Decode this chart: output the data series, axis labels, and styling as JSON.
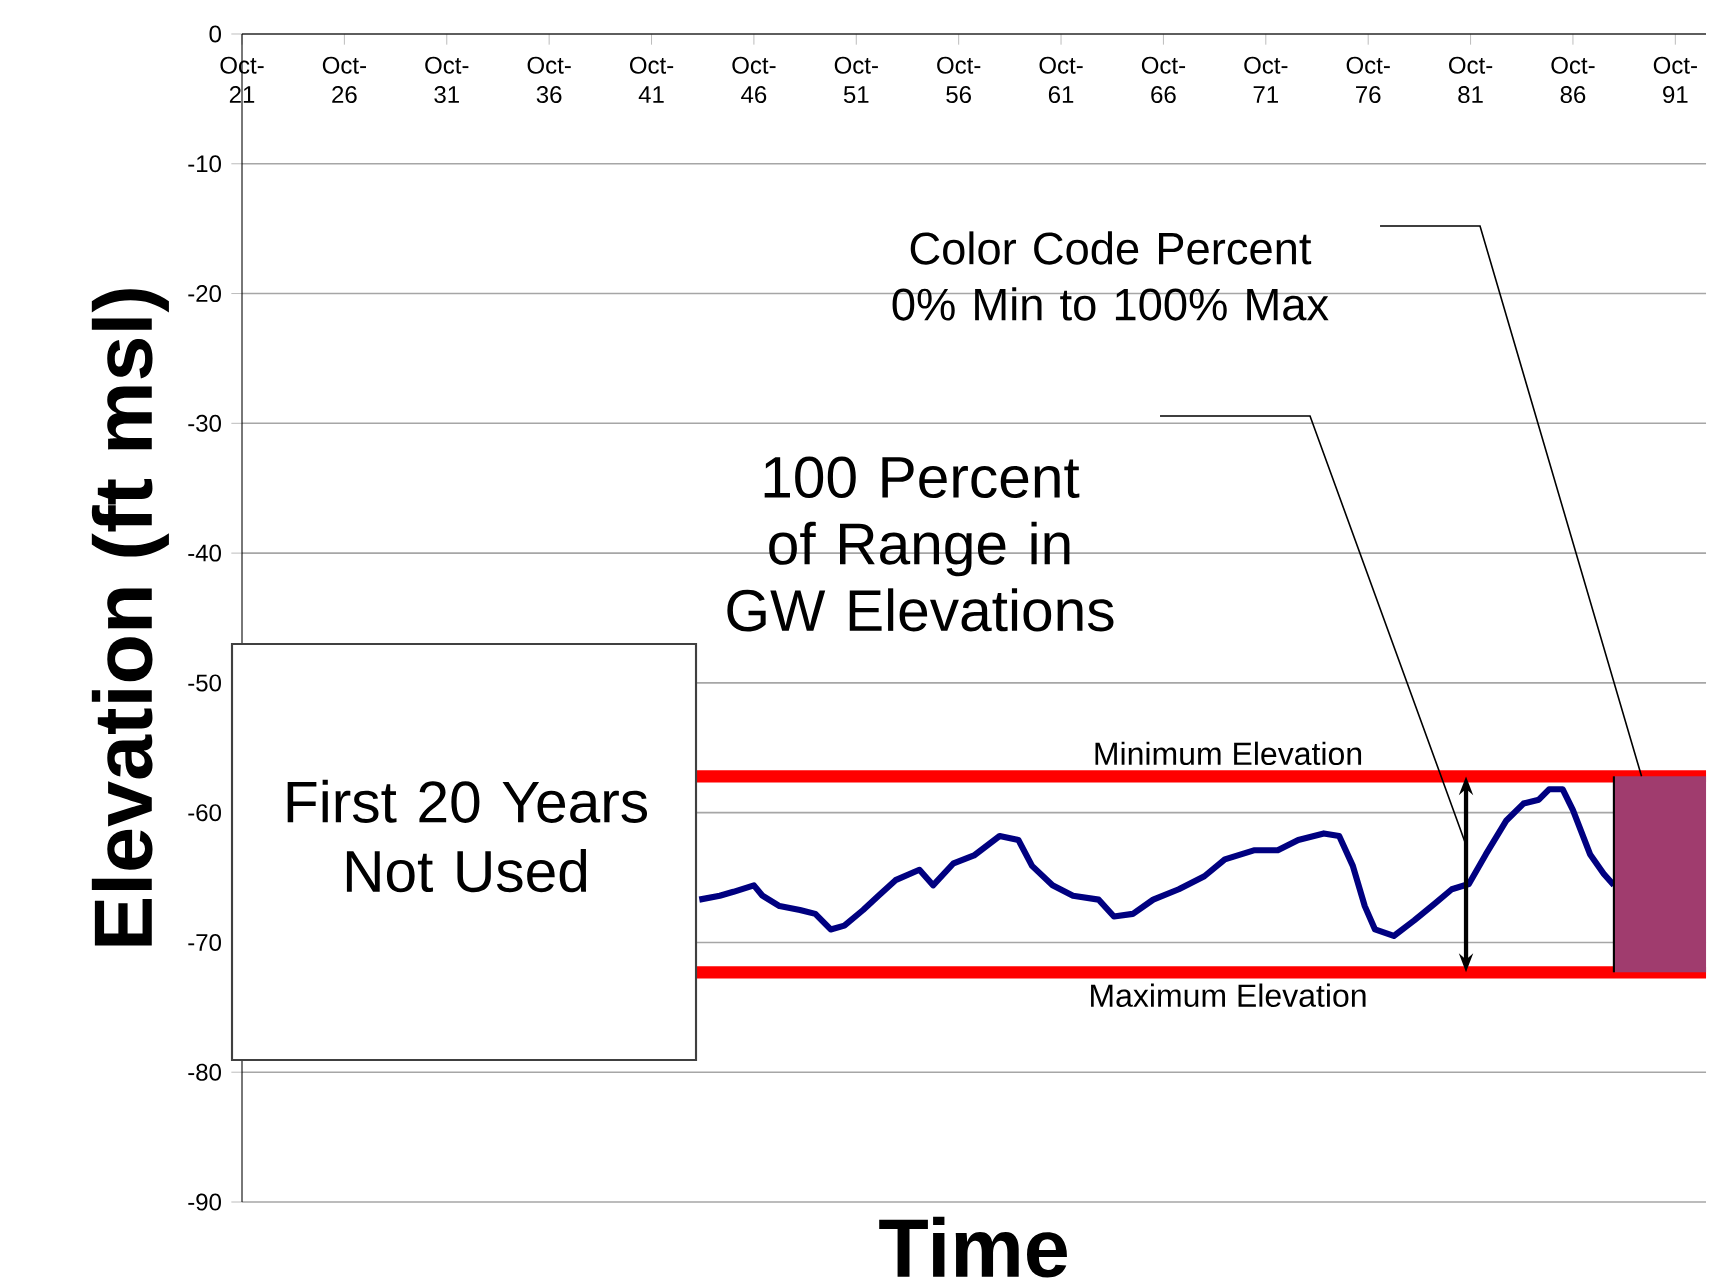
{
  "chart_data": {
    "type": "line",
    "xlabel": "Time",
    "ylabel": "Elevation (ft msl)",
    "x": [
      "1944-02",
      "1945-02",
      "1945-10",
      "1946-10",
      "1947-03",
      "1948-01",
      "1949-01",
      "1949-10",
      "1950-07",
      "1951-03",
      "1952-02",
      "1952-11",
      "1953-09",
      "1954-11",
      "1955-07",
      "1956-07",
      "1957-07",
      "1958-10",
      "1959-09",
      "1960-05",
      "1961-05",
      "1962-05",
      "1963-08",
      "1964-05",
      "1965-04",
      "1966-04",
      "1967-07",
      "1968-10",
      "1969-10",
      "1971-03",
      "1972-05",
      "1973-05",
      "1974-08",
      "1975-05",
      "1976-01",
      "1976-08",
      "1977-02",
      "1978-01",
      "1979-01",
      "1980-01",
      "1980-11",
      "1981-09",
      "1982-07",
      "1983-07",
      "1984-05",
      "1985-02",
      "1985-08",
      "1986-04",
      "1986-10",
      "1987-08",
      "1988-04",
      "1988-10"
    ],
    "series": [
      {
        "color": "#000080",
        "values": [
          -66.7,
          -66.4,
          -66.1,
          -65.6,
          -66.4,
          -67.2,
          -67.5,
          -67.8,
          -69.0,
          -68.7,
          -67.5,
          -66.4,
          -65.2,
          -64.4,
          -65.6,
          -63.9,
          -63.3,
          -61.8,
          -62.1,
          -64.1,
          -65.6,
          -66.4,
          -66.7,
          -68.0,
          -67.8,
          -66.7,
          -65.9,
          -64.9,
          -63.6,
          -62.9,
          -62.9,
          -62.1,
          -61.6,
          -61.8,
          -64.1,
          -67.2,
          -69.0,
          -69.5,
          -68.3,
          -67.0,
          -65.9,
          -65.5,
          -63.2,
          -60.6,
          -59.3,
          -59.0,
          -58.2,
          -58.2,
          -59.8,
          -63.2,
          -64.7,
          -65.6
        ]
      }
    ],
    "xlim": [
      "1921-10",
      "1993-04"
    ],
    "xticks": [
      {
        "value": "1921-10",
        "label": "Oct-21"
      },
      {
        "value": "1926-10",
        "label": "Oct-26"
      },
      {
        "value": "1931-10",
        "label": "Oct-31"
      },
      {
        "value": "1936-10",
        "label": "Oct-36"
      },
      {
        "value": "1941-10",
        "label": "Oct-41"
      },
      {
        "value": "1946-10",
        "label": "Oct-46"
      },
      {
        "value": "1951-10",
        "label": "Oct-51"
      },
      {
        "value": "1956-10",
        "label": "Oct-56"
      },
      {
        "value": "1961-10",
        "label": "Oct-61"
      },
      {
        "value": "1966-10",
        "label": "Oct-66"
      },
      {
        "value": "1971-10",
        "label": "Oct-71"
      },
      {
        "value": "1976-10",
        "label": "Oct-76"
      },
      {
        "value": "1981-10",
        "label": "Oct-81"
      },
      {
        "value": "1986-10",
        "label": "Oct-86"
      },
      {
        "value": "1991-10",
        "label": "Oct-91"
      }
    ],
    "ylim": [
      -90,
      0
    ],
    "yticks": [
      {
        "value": -90,
        "label": "-90"
      },
      {
        "value": -80,
        "label": "-80"
      },
      {
        "value": -70,
        "label": "-70"
      },
      {
        "value": -60,
        "label": "-60"
      },
      {
        "value": -50,
        "label": "-50"
      },
      {
        "value": -40,
        "label": "-40"
      },
      {
        "value": -30,
        "label": "-30"
      },
      {
        "value": -20,
        "label": "-20"
      },
      {
        "value": -10,
        "label": "-10"
      },
      {
        "value": 0,
        "label": "0"
      }
    ],
    "ref_lines": [
      {
        "axis": "y",
        "value": -57.2,
        "label": "Minimum Elevation",
        "color": "#ff0000"
      },
      {
        "axis": "y",
        "value": -72.3,
        "label": "Maximum Elevation",
        "color": "#ff0000"
      }
    ],
    "annotations": [
      "First 20 Years Not Used",
      "100 Percent of Range in GW Elevations",
      "Color Code Percent 0% Min to 100% Max"
    ],
    "grid": "y",
    "marker": "none",
    "line_style": "solid"
  }
}
